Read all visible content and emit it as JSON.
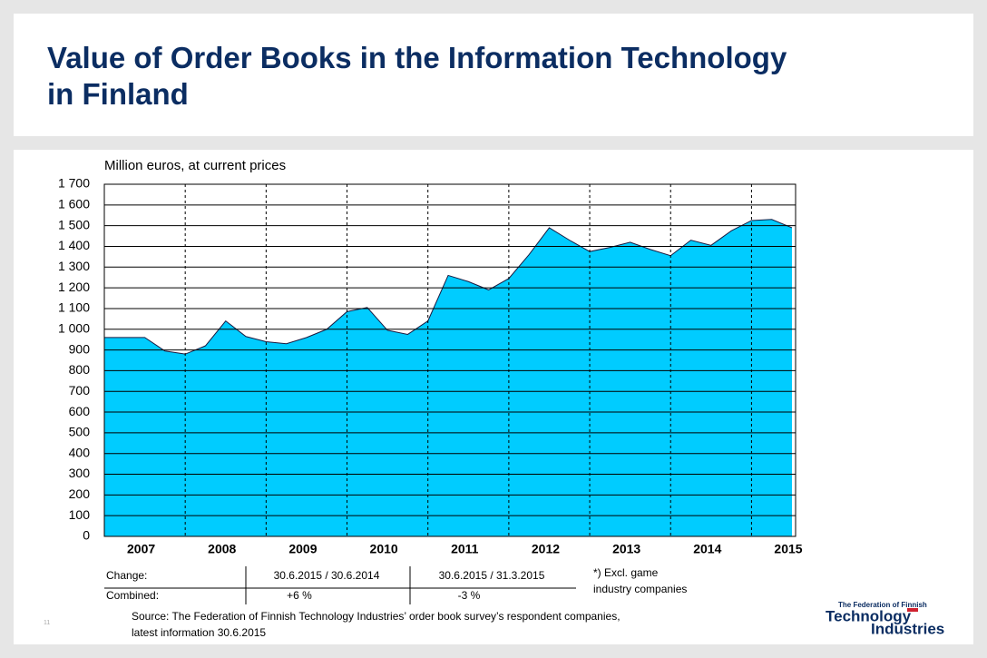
{
  "chart_data": {
    "type": "area",
    "title": "Value of Order Books in the Information Technology in Finland",
    "y_label": "Million euros, at current prices",
    "color": "#00ccff",
    "categories": [
      null,
      null,
      "2007",
      null,
      null,
      null,
      "2008",
      null,
      null,
      null,
      "2009",
      null,
      null,
      null,
      "2010",
      null,
      null,
      null,
      "2011",
      null,
      null,
      null,
      "2012",
      null,
      null,
      null,
      "2013",
      null,
      null,
      null,
      "2014",
      null,
      null,
      null,
      "2015"
    ],
    "values": [
      960,
      960,
      960,
      895,
      880,
      920,
      1040,
      965,
      940,
      930,
      960,
      1000,
      1085,
      1105,
      995,
      975,
      1040,
      1260,
      1230,
      1190,
      1245,
      1360,
      1490,
      1430,
      1375,
      1395,
      1420,
      1385,
      1355,
      1430,
      1405,
      1475,
      1525,
      1530,
      1490
    ],
    "ylim": [
      0,
      1700
    ],
    "yticks": [
      0,
      100,
      200,
      300,
      400,
      500,
      600,
      700,
      800,
      900,
      {
        "value": 1000,
        "label": "1 000"
      },
      {
        "value": 1100,
        "label": "1 100"
      },
      {
        "value": 1200,
        "label": "1 200"
      },
      {
        "value": 1300,
        "label": "1 300"
      },
      {
        "value": 1400,
        "label": "1 400"
      },
      {
        "value": 1500,
        "label": "1 500"
      },
      {
        "value": 1600,
        "label": "1 600"
      },
      {
        "value": 1700,
        "label": "1 700"
      }
    ],
    "grid": true
  },
  "table": {
    "rows": [
      [
        "Change:",
        "30.6.2015 / 30.6.2014",
        "30.6.2015 / 31.3.2015"
      ],
      [
        "Combined:",
        "+6 %",
        "-3 %"
      ]
    ]
  },
  "footnote": [
    "*) Excl. game",
    "industry companies"
  ],
  "source": [
    "Source: The Federation of Finnish Technology Industries’ order book survey’s respondent companies,",
    "latest information 30.6.2015"
  ],
  "page_number": "11",
  "logo": {
    "line1": "The Federation of Finnish",
    "line2": "Technology",
    "line3": "Industries"
  }
}
